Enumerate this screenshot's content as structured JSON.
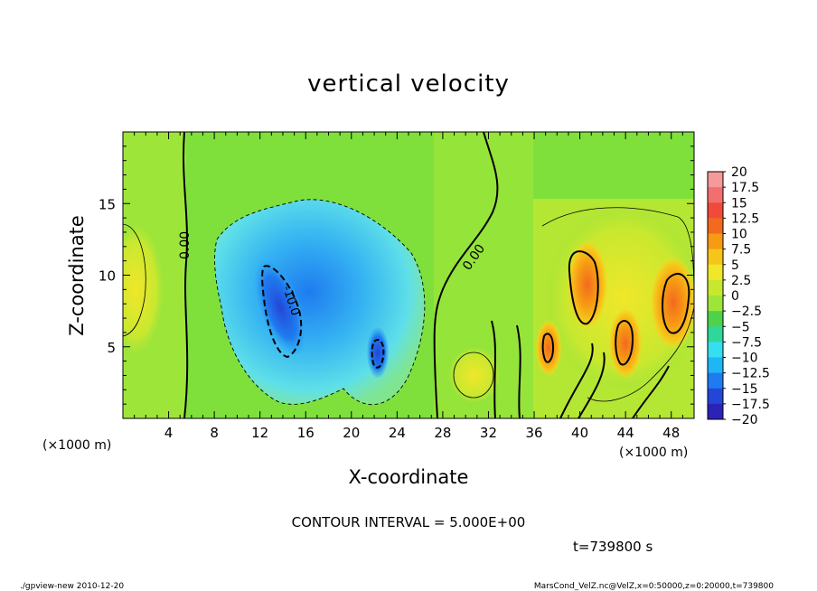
{
  "chart_data": {
    "type": "heatmap",
    "title": "vertical velocity",
    "xlabel": "X-coordinate",
    "ylabel": "Z-coordinate",
    "x_unit": "(×1000 m)",
    "x_unit_right": "(×1000 m)",
    "xlim": [
      0,
      50
    ],
    "ylim": [
      0,
      20
    ],
    "x_ticks": [
      4,
      8,
      12,
      16,
      20,
      24,
      28,
      32,
      36,
      40,
      44,
      48
    ],
    "y_ticks": [
      5,
      10,
      15
    ],
    "colorbar": {
      "labels": [
        "20",
        "17.5",
        "15",
        "12.5",
        "10",
        "7.5",
        "5",
        "2.5",
        "0",
        "−2.5",
        "−5",
        "−7.5",
        "−10",
        "−12.5",
        "−15",
        "−17.5",
        "−20"
      ],
      "colors": [
        "#f49a9a",
        "#f36f6f",
        "#f24a3a",
        "#f26a1e",
        "#f79a14",
        "#f7c51a",
        "#f0e72a",
        "#c8e82f",
        "#9ee53a",
        "#4ed24c",
        "#2fd89a",
        "#36dff0",
        "#1fb6f5",
        "#1e7cf0",
        "#2446d8",
        "#2b22b8",
        "#6a24b8"
      ]
    },
    "contour_labels": [
      "0.00",
      "0.00",
      "-10.0"
    ],
    "contour_interval_text": "CONTOUR INTERVAL = 5.000E+00",
    "time_text": "t=739800 s"
  },
  "footer": {
    "left": "./gpview-new   2010-12-20",
    "right": "MarsCond_VelZ.nc@VelZ,x=0:50000,z=0:20000,t=739800"
  }
}
